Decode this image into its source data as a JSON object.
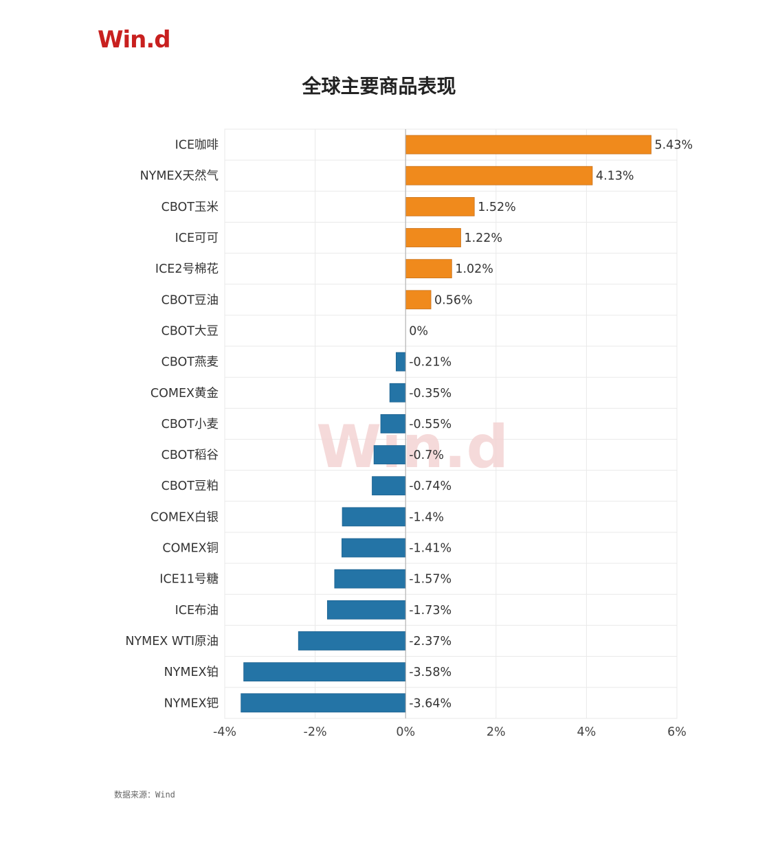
{
  "brand": {
    "logo_text": "Win.d",
    "logo_color": "#c8201f",
    "watermark_color": "#f3d2d2"
  },
  "source_note": "数据来源：Wind",
  "colors": {
    "positive": "#f08a1c",
    "negative": "#2474a6",
    "grid": "#e9e9e9",
    "axis": "#999999"
  },
  "chart_data": {
    "type": "bar",
    "orientation": "horizontal",
    "title": "全球主要商品表现",
    "xlabel": "",
    "ylabel": "",
    "xlim": [
      -4,
      6
    ],
    "xticks": [
      -4,
      -2,
      0,
      2,
      4,
      6
    ],
    "xtick_labels": [
      "-4%",
      "-2%",
      "0%",
      "2%",
      "4%",
      "6%"
    ],
    "grid": true,
    "categories": [
      "ICE咖啡",
      "NYMEX天然气",
      "CBOT玉米",
      "ICE可可",
      "ICE2号棉花",
      "CBOT豆油",
      "CBOT大豆",
      "CBOT燕麦",
      "COMEX黄金",
      "CBOT小麦",
      "CBOT稻谷",
      "CBOT豆粕",
      "COMEX白银",
      "COMEX铜",
      "ICE11号糖",
      "ICE布油",
      "NYMEX WTI原油",
      "NYMEX铂",
      "NYMEX钯"
    ],
    "values": [
      5.43,
      4.13,
      1.52,
      1.22,
      1.02,
      0.56,
      0,
      -0.21,
      -0.35,
      -0.55,
      -0.7,
      -0.74,
      -1.4,
      -1.41,
      -1.57,
      -1.73,
      -2.37,
      -3.58,
      -3.64
    ],
    "data_labels": [
      "5.43%",
      "4.13%",
      "1.52%",
      "1.22%",
      "1.02%",
      "0.56%",
      "0%",
      "-0.21%",
      "-0.35%",
      "-0.55%",
      "-0.7%",
      "-0.74%",
      "-1.4%",
      "-1.41%",
      "-1.57%",
      "-1.73%",
      "-2.37%",
      "-3.58%",
      "-3.64%"
    ]
  }
}
